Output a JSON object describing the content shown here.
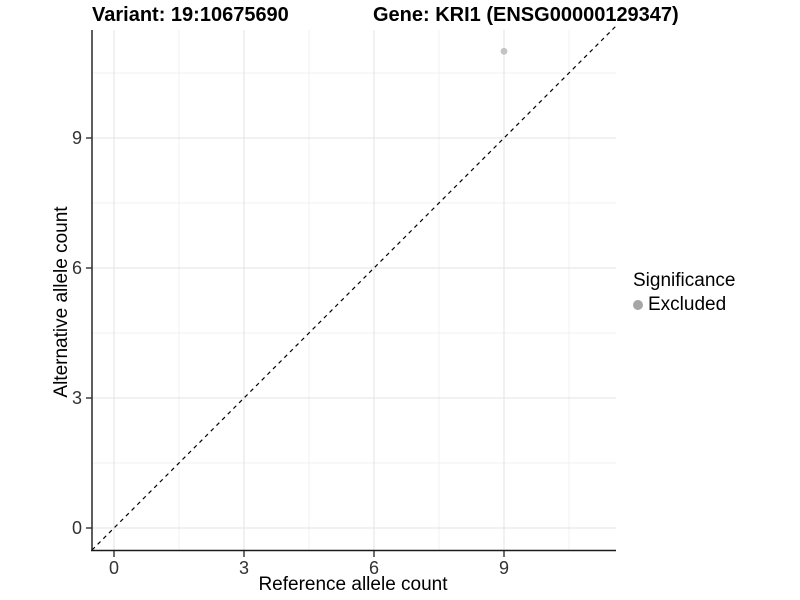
{
  "header": {
    "variant_title": "Variant: 19:10675690",
    "gene_title": "Gene: KRI1 (ENSG00000129347)"
  },
  "chart_data": {
    "type": "scatter",
    "title_left": "Variant: 19:10675690",
    "title_right": "Gene: KRI1 (ENSG00000129347)",
    "xlabel": "Reference allele count",
    "ylabel": "Alternative allele count",
    "xlim": [
      -0.5,
      11.5
    ],
    "ylim": [
      -0.5,
      11.5
    ],
    "x_ticks": [
      "0",
      "3",
      "6",
      "9"
    ],
    "y_ticks": [
      "0",
      "3",
      "6",
      "9"
    ],
    "grid": "major+minor, light gray on white",
    "points": [
      {
        "x": 9,
        "y": 11,
        "series": "Excluded",
        "color": "#c3c3c3"
      }
    ],
    "reference_line": {
      "type": "identity y=x",
      "style": "dashed",
      "color": "#000000"
    },
    "legend": {
      "position": "right",
      "title": "Significance",
      "items": [
        {
          "label": "Excluded",
          "color": "#a6a6a6"
        }
      ]
    }
  },
  "colors": {
    "background": "#ffffff",
    "panel_background": "#ffffff",
    "grid_major": "#e3e3e3",
    "grid_minor": "#f0f0f0",
    "axis_line": "#1a1a1a",
    "tick_text": "#333333",
    "point_fill": "#c3c3c3",
    "legend_key_fill": "#a6a6a6"
  }
}
